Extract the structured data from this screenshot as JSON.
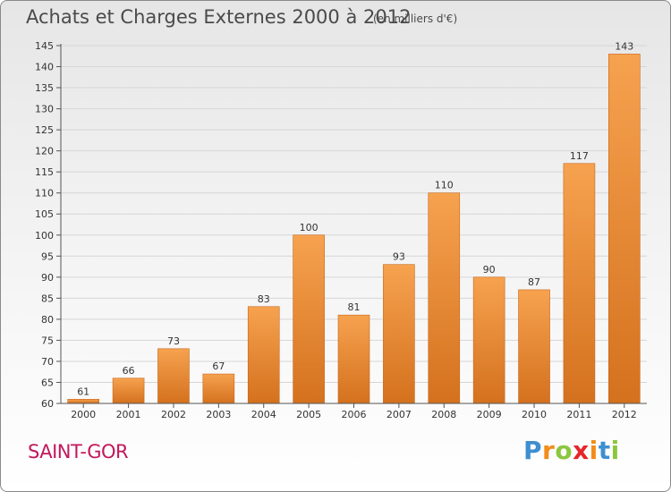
{
  "header": {
    "title": "Achats et Charges Externes 2000 à 2012",
    "subtitle": "(en milliers d'€)"
  },
  "footer": {
    "place": "SAINT-GOR",
    "brand": {
      "text": "Proxiti",
      "letters": [
        "P",
        "r",
        "o",
        "x",
        "i",
        "t",
        "i"
      ],
      "colors": [
        "#3d8fd1",
        "#f28c1a",
        "#8cc63f",
        "#e5262b",
        "#f28c1a",
        "#3d8fd1",
        "#8cc63f"
      ]
    }
  },
  "colors": {
    "bar_light": "#f6a24f",
    "bar_dark": "#d4711e",
    "axis": "#555555",
    "grid": "#d6d6d6",
    "text": "#333333"
  },
  "chart_data": {
    "type": "bar",
    "title": "Achats et Charges Externes 2000 à 2012",
    "subtitle": "(en milliers d'€)",
    "categories": [
      "2000",
      "2001",
      "2002",
      "2003",
      "2004",
      "2005",
      "2006",
      "2007",
      "2008",
      "2009",
      "2010",
      "2011",
      "2012"
    ],
    "values": [
      61,
      66,
      73,
      67,
      83,
      100,
      81,
      93,
      110,
      90,
      87,
      117,
      143
    ],
    "data_labels": [
      "61",
      "66",
      "73",
      "67",
      "83",
      "100",
      "81",
      "93",
      "110",
      "90",
      "87",
      "117",
      "143"
    ],
    "ylim": [
      60,
      145
    ],
    "yticks": [
      60,
      65,
      70,
      75,
      80,
      85,
      90,
      95,
      100,
      105,
      110,
      115,
      120,
      125,
      130,
      135,
      140,
      145
    ],
    "grid": true
  }
}
